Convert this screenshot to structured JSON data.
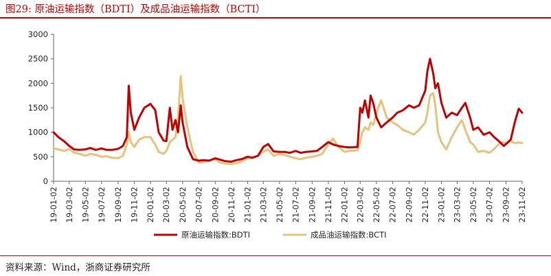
{
  "header": {
    "title": "图29:   原油运输指数（BDTI）及成品油运输指数（BCTI）"
  },
  "footer": {
    "source": "资料来源：Wind，浙商证券研究所"
  },
  "colors": {
    "bdti": "#c00000",
    "bcti": "#e6c27a",
    "axis": "#666666",
    "rule": "#c00000"
  },
  "chart_data": {
    "type": "line",
    "title": "原油运输指数（BDTI）及成品油运输指数（BCTI）",
    "xlabel": "",
    "ylabel": "",
    "ylim": [
      0,
      3000
    ],
    "yticks": [
      0,
      500,
      1000,
      1500,
      2000,
      2500,
      3000
    ],
    "xlim": [
      "2019-01-02",
      "2023-11-02"
    ],
    "xticks": [
      "19-01-02",
      "19-03-02",
      "19-05-02",
      "19-07-02",
      "19-09-02",
      "19-11-02",
      "20-01-02",
      "20-03-02",
      "20-05-02",
      "20-07-02",
      "20-09-02",
      "20-11-02",
      "21-01-02",
      "21-03-02",
      "21-05-02",
      "21-07-02",
      "21-09-02",
      "21-11-02",
      "22-01-02",
      "22-03-02",
      "22-05-02",
      "22-07-02",
      "22-09-02",
      "22-11-02",
      "23-01-02",
      "23-03-02",
      "23-05-02",
      "23-07-02",
      "23-09-02",
      "23-11-02"
    ],
    "grid": false,
    "legend": "bottom",
    "series": [
      {
        "name": "原油运输指数:BDTI",
        "points": [
          [
            "2019-01-02",
            1000
          ],
          [
            "2019-01-20",
            900
          ],
          [
            "2019-02-10",
            820
          ],
          [
            "2019-03-02",
            720
          ],
          [
            "2019-03-20",
            650
          ],
          [
            "2019-04-10",
            640
          ],
          [
            "2019-05-02",
            650
          ],
          [
            "2019-05-20",
            680
          ],
          [
            "2019-06-10",
            640
          ],
          [
            "2019-07-02",
            670
          ],
          [
            "2019-07-20",
            640
          ],
          [
            "2019-08-10",
            640
          ],
          [
            "2019-09-02",
            660
          ],
          [
            "2019-09-20",
            720
          ],
          [
            "2019-10-05",
            900
          ],
          [
            "2019-10-12",
            1950
          ],
          [
            "2019-10-20",
            1400
          ],
          [
            "2019-11-02",
            1050
          ],
          [
            "2019-11-20",
            1300
          ],
          [
            "2019-12-10",
            1500
          ],
          [
            "2020-01-02",
            1580
          ],
          [
            "2020-01-20",
            1450
          ],
          [
            "2020-02-02",
            1000
          ],
          [
            "2020-02-20",
            830
          ],
          [
            "2020-03-02",
            820
          ],
          [
            "2020-03-15",
            1500
          ],
          [
            "2020-03-25",
            1050
          ],
          [
            "2020-04-05",
            1250
          ],
          [
            "2020-04-15",
            1000
          ],
          [
            "2020-04-25",
            1550
          ],
          [
            "2020-05-02",
            1200
          ],
          [
            "2020-05-20",
            700
          ],
          [
            "2020-06-10",
            450
          ],
          [
            "2020-07-02",
            420
          ],
          [
            "2020-07-20",
            430
          ],
          [
            "2020-08-10",
            420
          ],
          [
            "2020-09-02",
            470
          ],
          [
            "2020-09-20",
            440
          ],
          [
            "2020-10-10",
            410
          ],
          [
            "2020-11-02",
            400
          ],
          [
            "2020-11-20",
            430
          ],
          [
            "2020-12-10",
            450
          ],
          [
            "2021-01-02",
            500
          ],
          [
            "2021-01-20",
            480
          ],
          [
            "2021-02-10",
            520
          ],
          [
            "2021-03-02",
            700
          ],
          [
            "2021-03-20",
            760
          ],
          [
            "2021-04-10",
            610
          ],
          [
            "2021-05-02",
            600
          ],
          [
            "2021-05-20",
            600
          ],
          [
            "2021-06-10",
            580
          ],
          [
            "2021-07-02",
            620
          ],
          [
            "2021-07-20",
            580
          ],
          [
            "2021-08-10",
            600
          ],
          [
            "2021-09-02",
            610
          ],
          [
            "2021-09-20",
            620
          ],
          [
            "2021-10-10",
            700
          ],
          [
            "2021-11-02",
            800
          ],
          [
            "2021-11-20",
            750
          ],
          [
            "2021-12-10",
            720
          ],
          [
            "2022-01-02",
            700
          ],
          [
            "2022-01-20",
            690
          ],
          [
            "2022-02-20",
            700
          ],
          [
            "2022-03-02",
            1500
          ],
          [
            "2022-03-10",
            1400
          ],
          [
            "2022-03-20",
            1650
          ],
          [
            "2022-04-02",
            1300
          ],
          [
            "2022-04-10",
            1750
          ],
          [
            "2022-04-20",
            1600
          ],
          [
            "2022-05-02",
            1300
          ],
          [
            "2022-05-20",
            1100
          ],
          [
            "2022-06-10",
            1200
          ],
          [
            "2022-07-02",
            1300
          ],
          [
            "2022-07-20",
            1400
          ],
          [
            "2022-08-10",
            1450
          ],
          [
            "2022-09-02",
            1550
          ],
          [
            "2022-09-20",
            1500
          ],
          [
            "2022-10-10",
            1550
          ],
          [
            "2022-11-02",
            1850
          ],
          [
            "2022-11-10",
            2250
          ],
          [
            "2022-11-20",
            2500
          ],
          [
            "2022-12-02",
            2200
          ],
          [
            "2022-12-10",
            1900
          ],
          [
            "2022-12-20",
            2000
          ],
          [
            "2023-01-02",
            1600
          ],
          [
            "2023-01-20",
            1300
          ],
          [
            "2023-02-10",
            1400
          ],
          [
            "2023-03-02",
            1350
          ],
          [
            "2023-03-20",
            1500
          ],
          [
            "2023-04-02",
            1600
          ],
          [
            "2023-04-20",
            1300
          ],
          [
            "2023-05-02",
            1050
          ],
          [
            "2023-05-20",
            1100
          ],
          [
            "2023-06-10",
            950
          ],
          [
            "2023-07-02",
            1000
          ],
          [
            "2023-07-20",
            900
          ],
          [
            "2023-08-10",
            800
          ],
          [
            "2023-08-25",
            720
          ],
          [
            "2023-09-02",
            760
          ],
          [
            "2023-09-20",
            850
          ],
          [
            "2023-10-05",
            1200
          ],
          [
            "2023-10-20",
            1480
          ],
          [
            "2023-11-02",
            1400
          ]
        ]
      },
      {
        "name": "成品油运输指数:BCTI",
        "points": [
          [
            "2019-01-02",
            670
          ],
          [
            "2019-01-20",
            650
          ],
          [
            "2019-02-10",
            620
          ],
          [
            "2019-03-02",
            660
          ],
          [
            "2019-03-20",
            580
          ],
          [
            "2019-04-10",
            560
          ],
          [
            "2019-05-02",
            520
          ],
          [
            "2019-05-20",
            560
          ],
          [
            "2019-06-10",
            540
          ],
          [
            "2019-07-02",
            500
          ],
          [
            "2019-07-20",
            510
          ],
          [
            "2019-08-10",
            480
          ],
          [
            "2019-09-02",
            470
          ],
          [
            "2019-09-20",
            520
          ],
          [
            "2019-10-05",
            750
          ],
          [
            "2019-10-12",
            1000
          ],
          [
            "2019-10-20",
            800
          ],
          [
            "2019-11-02",
            700
          ],
          [
            "2019-11-20",
            850
          ],
          [
            "2019-12-10",
            900
          ],
          [
            "2020-01-02",
            900
          ],
          [
            "2020-01-20",
            750
          ],
          [
            "2020-02-02",
            600
          ],
          [
            "2020-02-20",
            560
          ],
          [
            "2020-03-02",
            620
          ],
          [
            "2020-03-15",
            800
          ],
          [
            "2020-03-25",
            850
          ],
          [
            "2020-04-05",
            900
          ],
          [
            "2020-04-15",
            1300
          ],
          [
            "2020-04-25",
            2150
          ],
          [
            "2020-05-02",
            1700
          ],
          [
            "2020-05-20",
            1100
          ],
          [
            "2020-06-10",
            600
          ],
          [
            "2020-07-02",
            380
          ],
          [
            "2020-07-20",
            390
          ],
          [
            "2020-08-10",
            430
          ],
          [
            "2020-09-02",
            450
          ],
          [
            "2020-09-20",
            380
          ],
          [
            "2020-10-10",
            360
          ],
          [
            "2020-11-02",
            350
          ],
          [
            "2020-11-20",
            370
          ],
          [
            "2020-12-10",
            400
          ],
          [
            "2021-01-02",
            470
          ],
          [
            "2021-01-20",
            480
          ],
          [
            "2021-02-10",
            520
          ],
          [
            "2021-03-02",
            600
          ],
          [
            "2021-03-20",
            650
          ],
          [
            "2021-04-10",
            520
          ],
          [
            "2021-05-02",
            560
          ],
          [
            "2021-05-20",
            540
          ],
          [
            "2021-06-10",
            500
          ],
          [
            "2021-07-02",
            470
          ],
          [
            "2021-07-20",
            450
          ],
          [
            "2021-08-10",
            480
          ],
          [
            "2021-09-02",
            500
          ],
          [
            "2021-09-20",
            520
          ],
          [
            "2021-10-10",
            560
          ],
          [
            "2021-11-02",
            750
          ],
          [
            "2021-11-20",
            870
          ],
          [
            "2021-12-10",
            700
          ],
          [
            "2022-01-02",
            600
          ],
          [
            "2022-01-20",
            620
          ],
          [
            "2022-02-20",
            630
          ],
          [
            "2022-03-02",
            800
          ],
          [
            "2022-03-10",
            1000
          ],
          [
            "2022-03-20",
            1100
          ],
          [
            "2022-04-02",
            1050
          ],
          [
            "2022-04-10",
            1200
          ],
          [
            "2022-04-20",
            1150
          ],
          [
            "2022-05-02",
            1400
          ],
          [
            "2022-05-20",
            1650
          ],
          [
            "2022-06-10",
            1300
          ],
          [
            "2022-07-02",
            1200
          ],
          [
            "2022-07-20",
            1150
          ],
          [
            "2022-08-10",
            1050
          ],
          [
            "2022-09-02",
            1000
          ],
          [
            "2022-09-20",
            950
          ],
          [
            "2022-10-10",
            1050
          ],
          [
            "2022-11-02",
            1200
          ],
          [
            "2022-11-10",
            1400
          ],
          [
            "2022-11-20",
            1750
          ],
          [
            "2022-12-02",
            1800
          ],
          [
            "2022-12-10",
            1550
          ],
          [
            "2022-12-20",
            1000
          ],
          [
            "2023-01-02",
            800
          ],
          [
            "2023-01-20",
            650
          ],
          [
            "2023-02-10",
            900
          ],
          [
            "2023-03-02",
            1100
          ],
          [
            "2023-03-20",
            1250
          ],
          [
            "2023-04-02",
            1050
          ],
          [
            "2023-04-20",
            800
          ],
          [
            "2023-05-02",
            750
          ],
          [
            "2023-05-20",
            600
          ],
          [
            "2023-06-10",
            620
          ],
          [
            "2023-07-02",
            580
          ],
          [
            "2023-07-20",
            660
          ],
          [
            "2023-08-10",
            780
          ],
          [
            "2023-08-25",
            800
          ],
          [
            "2023-09-02",
            760
          ],
          [
            "2023-09-20",
            820
          ],
          [
            "2023-10-05",
            780
          ],
          [
            "2023-10-20",
            790
          ],
          [
            "2023-11-02",
            780
          ]
        ]
      }
    ]
  }
}
